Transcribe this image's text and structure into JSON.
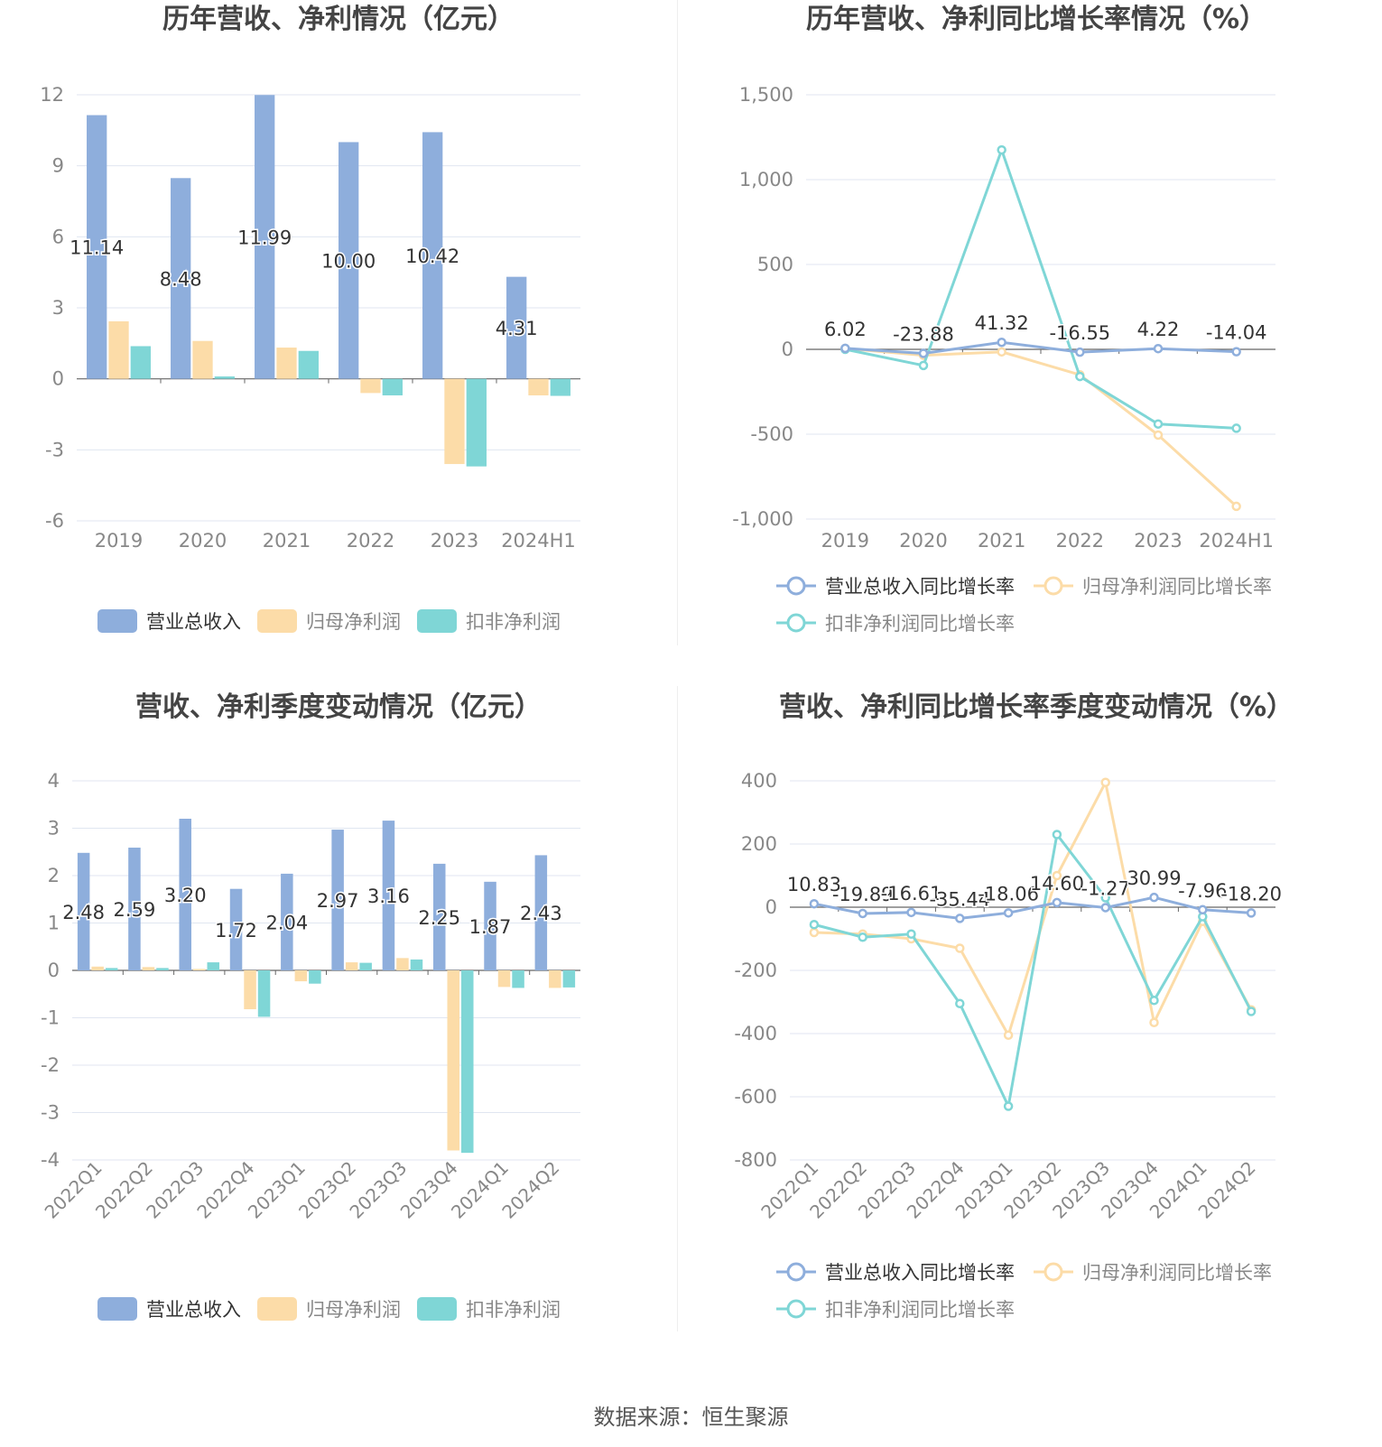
{
  "source": "数据来源：恒生聚源",
  "chart_data": [
    {
      "id": "annual-bars",
      "type": "bar",
      "title": "历年营收、净利情况（亿元）",
      "categories": [
        "2019",
        "2020",
        "2021",
        "2022",
        "2023",
        "2024H1"
      ],
      "ylim": [
        -6,
        12
      ],
      "yticks": [
        -6,
        -3,
        0,
        3,
        6,
        9,
        12
      ],
      "grid": true,
      "legend": "bottom",
      "colors": [
        "#8eaedc",
        "#fcdca8",
        "#7fd6d6"
      ],
      "label_series": 0,
      "series": [
        {
          "name": "营业总收入",
          "values": [
            11.14,
            8.48,
            11.99,
            10.0,
            10.42,
            4.31
          ],
          "labels": [
            "11.14",
            "8.48",
            "11.99",
            "10.00",
            "10.42",
            "4.31"
          ]
        },
        {
          "name": "归母净利润",
          "values": [
            2.43,
            1.6,
            1.32,
            -0.6,
            -3.6,
            -0.7
          ]
        },
        {
          "name": "扣非净利润",
          "values": [
            1.38,
            0.1,
            1.18,
            -0.7,
            -3.7,
            -0.72
          ]
        }
      ]
    },
    {
      "id": "annual-growth",
      "type": "line",
      "title": "历年营收、净利同比增长率情况（%）",
      "categories": [
        "2019",
        "2020",
        "2021",
        "2022",
        "2023",
        "2024H1"
      ],
      "ylim": [
        -1000,
        1500
      ],
      "yticks": [
        -1000,
        -500,
        0,
        500,
        1000,
        1500
      ],
      "ytick_labels": [
        "-1,000",
        "-500",
        "0",
        "500",
        "1,000",
        "1,500"
      ],
      "grid": true,
      "legend": "bottom",
      "colors": [
        "#8eaedc",
        "#fcdca8",
        "#7fd6d6"
      ],
      "label_series": 0,
      "series": [
        {
          "name": "营业总收入同比增长率",
          "values": [
            6.02,
            -23.88,
            41.32,
            -16.55,
            4.22,
            -14.04
          ],
          "labels": [
            "6.02",
            "-23.88",
            "41.32",
            "-16.55",
            "4.22",
            "-14.04"
          ]
        },
        {
          "name": "归母净利润同比增长率",
          "values": [
            5,
            -35,
            -15,
            -150,
            -505,
            -925
          ]
        },
        {
          "name": "扣非净利润同比增长率",
          "values": [
            0,
            -95,
            1175,
            -160,
            -440,
            -465
          ]
        }
      ]
    },
    {
      "id": "quarterly-bars",
      "type": "bar",
      "title": "营收、净利季度变动情况（亿元）",
      "categories": [
        "2022Q1",
        "2022Q2",
        "2022Q3",
        "2022Q4",
        "2023Q1",
        "2023Q2",
        "2023Q3",
        "2023Q4",
        "2024Q1",
        "2024Q2"
      ],
      "ylim": [
        -4,
        4
      ],
      "yticks": [
        -4,
        -3,
        -2,
        -1,
        0,
        1,
        2,
        3,
        4
      ],
      "grid": true,
      "legend": "bottom",
      "colors": [
        "#8eaedc",
        "#fcdca8",
        "#7fd6d6"
      ],
      "label_series": 0,
      "series": [
        {
          "name": "营业总收入",
          "values": [
            2.48,
            2.59,
            3.2,
            1.72,
            2.04,
            2.97,
            3.16,
            2.25,
            1.87,
            2.43
          ],
          "labels": [
            "2.48",
            "2.59",
            "3.20",
            "1.72",
            "2.04",
            "2.97",
            "3.16",
            "2.25",
            "1.87",
            "2.43"
          ]
        },
        {
          "name": "归母净利润",
          "values": [
            0.08,
            0.07,
            0.03,
            -0.82,
            -0.23,
            0.17,
            0.26,
            -3.8,
            -0.35,
            -0.37
          ]
        },
        {
          "name": "扣非净利润",
          "values": [
            0.05,
            0.05,
            0.17,
            -0.98,
            -0.28,
            0.16,
            0.23,
            -3.85,
            -0.37,
            -0.36
          ]
        }
      ]
    },
    {
      "id": "quarterly-growth",
      "type": "line",
      "title": "营收、净利同比增长率季度变动情况（%）",
      "categories": [
        "2022Q1",
        "2022Q2",
        "2022Q3",
        "2022Q4",
        "2023Q1",
        "2023Q2",
        "2023Q3",
        "2023Q4",
        "2024Q1",
        "2024Q2"
      ],
      "ylim": [
        -800,
        400
      ],
      "yticks": [
        -800,
        -600,
        -400,
        -200,
        0,
        200,
        400
      ],
      "grid": true,
      "legend": "bottom",
      "colors": [
        "#8eaedc",
        "#fcdca8",
        "#7fd6d6"
      ],
      "label_series": 0,
      "series": [
        {
          "name": "营业总收入同比增长率",
          "values": [
            10.83,
            -19.89,
            -16.61,
            -35.44,
            -18.06,
            14.6,
            -1.27,
            30.99,
            -7.96,
            -18.2
          ],
          "labels": [
            "10.83",
            "-19.89",
            "-16.61",
            "-35.44",
            "-18.06",
            "14.60",
            "-1.27",
            "30.99",
            "-7.96",
            "-18.20"
          ]
        },
        {
          "name": "归母净利润同比增长率",
          "values": [
            -80,
            -85,
            -100,
            -130,
            -405,
            100,
            395,
            -365,
            -45,
            -325
          ]
        },
        {
          "name": "扣非净利润同比增长率",
          "values": [
            -55,
            -95,
            -85,
            -305,
            -630,
            230,
            30,
            -295,
            -30,
            -330
          ]
        }
      ]
    }
  ]
}
